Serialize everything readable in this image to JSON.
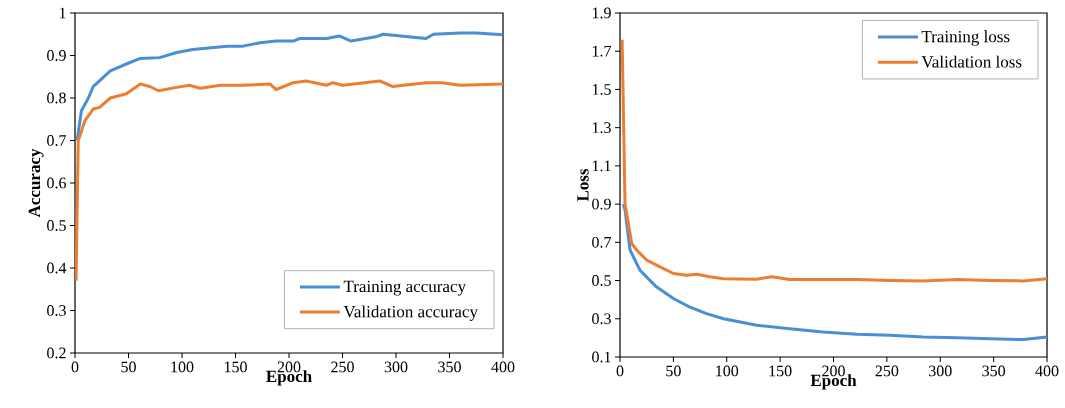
{
  "chart_data": [
    {
      "type": "line",
      "xlabel": "Epoch",
      "ylabel": "Accuracy",
      "xlim": [
        0,
        400
      ],
      "ylim": [
        0.2,
        1
      ],
      "xticks": [
        0,
        50,
        100,
        150,
        200,
        250,
        300,
        350,
        400
      ],
      "yticks": [
        0.2,
        0.3,
        0.4,
        0.5,
        0.6,
        0.7,
        0.8,
        0.9,
        1
      ],
      "legend": "bottom right",
      "grid": false,
      "series": [
        {
          "name": "Training accuracy",
          "color": "#4a8fd4",
          "x": [
            2,
            6,
            12.5,
            17,
            33,
            48,
            61,
            79,
            95,
            110,
            142,
            157,
            173,
            188,
            204,
            210,
            235,
            247,
            258,
            281,
            288,
            328,
            335,
            360,
            375,
            400
          ],
          "values": [
            0.7,
            0.77,
            0.8,
            0.827,
            0.864,
            0.88,
            0.893,
            0.895,
            0.907,
            0.914,
            0.922,
            0.922,
            0.93,
            0.934,
            0.934,
            0.94,
            0.94,
            0.946,
            0.934,
            0.944,
            0.95,
            0.94,
            0.95,
            0.953,
            0.953,
            0.949
          ]
        },
        {
          "name": "Validation accuracy",
          "color": "#ed7d31",
          "x": [
            1,
            3,
            4.7,
            9.3,
            17,
            23,
            33,
            48,
            61,
            70,
            78,
            95,
            107,
            117,
            136,
            157,
            182,
            188,
            204,
            216,
            235,
            241,
            250,
            285,
            297,
            328,
            343,
            360,
            400
          ],
          "values": [
            0.37,
            0.7,
            0.712,
            0.747,
            0.774,
            0.778,
            0.8,
            0.81,
            0.833,
            0.827,
            0.817,
            0.825,
            0.83,
            0.823,
            0.83,
            0.83,
            0.833,
            0.82,
            0.836,
            0.84,
            0.83,
            0.836,
            0.83,
            0.84,
            0.827,
            0.836,
            0.836,
            0.83,
            0.833
          ]
        }
      ]
    },
    {
      "type": "line",
      "xlabel": "Epoch",
      "ylabel": "Loss",
      "xlim": [
        0,
        400
      ],
      "ylim": [
        0.1,
        1.9
      ],
      "xticks": [
        0,
        50,
        100,
        150,
        200,
        250,
        300,
        350,
        400
      ],
      "yticks": [
        0.1,
        0.3,
        0.5,
        0.7,
        0.9,
        1.1,
        1.3,
        1.5,
        1.7,
        1.9
      ],
      "legend": "top right",
      "grid": false,
      "series": [
        {
          "name": "Training loss",
          "color": "#4a8fd4",
          "x": [
            3,
            4.7,
            9.4,
            18.7,
            34,
            50,
            65,
            81,
            97,
            128,
            159,
            190,
            222,
            253,
            284,
            316,
            347,
            378,
            400
          ],
          "values": [
            0.9,
            0.87,
            0.66,
            0.554,
            0.467,
            0.406,
            0.362,
            0.327,
            0.3,
            0.266,
            0.248,
            0.231,
            0.219,
            0.214,
            0.205,
            0.201,
            0.196,
            0.191,
            0.205
          ]
        },
        {
          "name": "Validation loss",
          "color": "#ed7d31",
          "x": [
            2,
            4.7,
            11,
            15.6,
            25,
            37.5,
            50,
            62.5,
            72,
            84,
            97,
            128,
            142,
            159,
            190,
            222,
            253,
            284,
            316,
            347,
            378,
            400
          ],
          "values": [
            1.76,
            0.9,
            0.694,
            0.66,
            0.607,
            0.572,
            0.537,
            0.528,
            0.533,
            0.52,
            0.51,
            0.507,
            0.52,
            0.505,
            0.505,
            0.505,
            0.5,
            0.498,
            0.505,
            0.5,
            0.498,
            0.51
          ]
        }
      ]
    }
  ]
}
